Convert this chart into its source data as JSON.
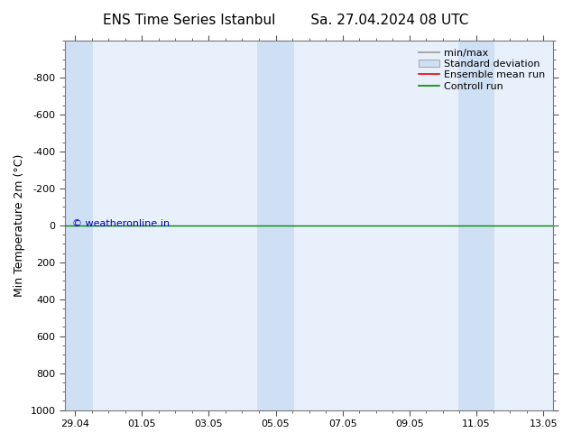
{
  "title_left": "ENS Time Series Istanbul",
  "title_right": "Sa. 27.04.2024 08 UTC",
  "ylabel": "Min Temperature 2m (°C)",
  "background_color": "#ffffff",
  "plot_bg_color": "#e8f0fb",
  "ylim_top": -1000,
  "ylim_bottom": 1000,
  "yticks": [
    -800,
    -600,
    -400,
    -200,
    0,
    200,
    400,
    600,
    800,
    1000
  ],
  "xtick_labels": [
    "29.04",
    "01.05",
    "03.05",
    "05.05",
    "07.05",
    "09.05",
    "11.05",
    "13.05"
  ],
  "xtick_positions": [
    0,
    2,
    4,
    6,
    8,
    10,
    12,
    14
  ],
  "xlim": [
    -0.3,
    14.3
  ],
  "shaded_col_centers": [
    0,
    6,
    12
  ],
  "shaded_col_halfwidth": 0.55,
  "shaded_color": "#cfe0f5",
  "green_line_y": 0,
  "green_line_color": "#008800",
  "copyright_text": "© weatheronline.in",
  "copyright_color": "#0000cc",
  "legend_minmax_color": "#aaaaaa",
  "legend_std_color": "#cfe0f5",
  "legend_mean_color": "#ee0000",
  "legend_control_color": "#008800",
  "title_fontsize": 11,
  "ylabel_fontsize": 9,
  "tick_fontsize": 8,
  "legend_fontsize": 8
}
